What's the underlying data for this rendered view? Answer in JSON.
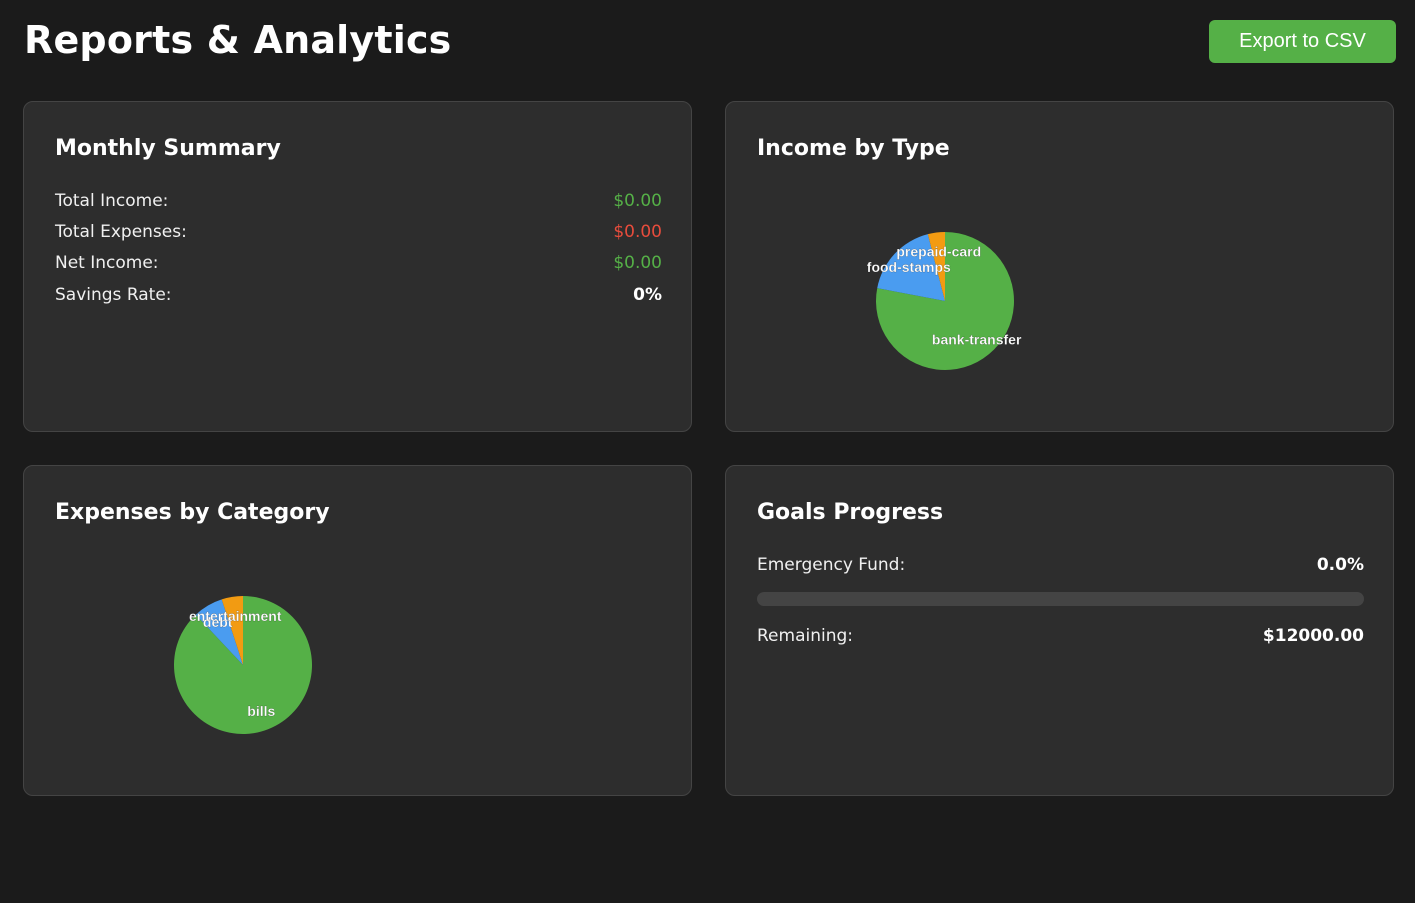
{
  "header": {
    "title": "Reports & Analytics",
    "export_label": "Export to CSV"
  },
  "colors": {
    "accent_green": "#55b047",
    "expense_red": "#e74c3c",
    "pie_blue": "#4a9cf0",
    "pie_orange": "#f29b12"
  },
  "summary": {
    "title": "Monthly Summary",
    "rows": [
      {
        "label": "Total Income:",
        "value": "$0.00"
      },
      {
        "label": "Total Expenses:",
        "value": "$0.00"
      },
      {
        "label": "Net Income:",
        "value": "$0.00"
      },
      {
        "label": "Savings Rate:",
        "value": "0%"
      }
    ]
  },
  "income": {
    "title": "Income by Type"
  },
  "expenses": {
    "title": "Expenses by Category"
  },
  "goals": {
    "title": "Goals Progress",
    "goal_label": "Emergency Fund:",
    "goal_value": "0.0%",
    "progress_fraction": 0.0,
    "remaining_label": "Remaining:",
    "remaining_value": "$12000.00"
  },
  "chart_data": [
    {
      "type": "pie",
      "categories": [
        "bank-transfer",
        "food-stamps",
        "prepaid-card"
      ],
      "values": [
        78,
        18,
        4
      ],
      "colors": [
        "#55b047",
        "#4a9cf0",
        "#f29b12"
      ]
    },
    {
      "type": "pie",
      "categories": [
        "bills",
        "debt",
        "entertainment"
      ],
      "values": [
        88,
        7,
        5
      ],
      "colors": [
        "#55b047",
        "#4a9cf0",
        "#f29b12"
      ]
    }
  ]
}
